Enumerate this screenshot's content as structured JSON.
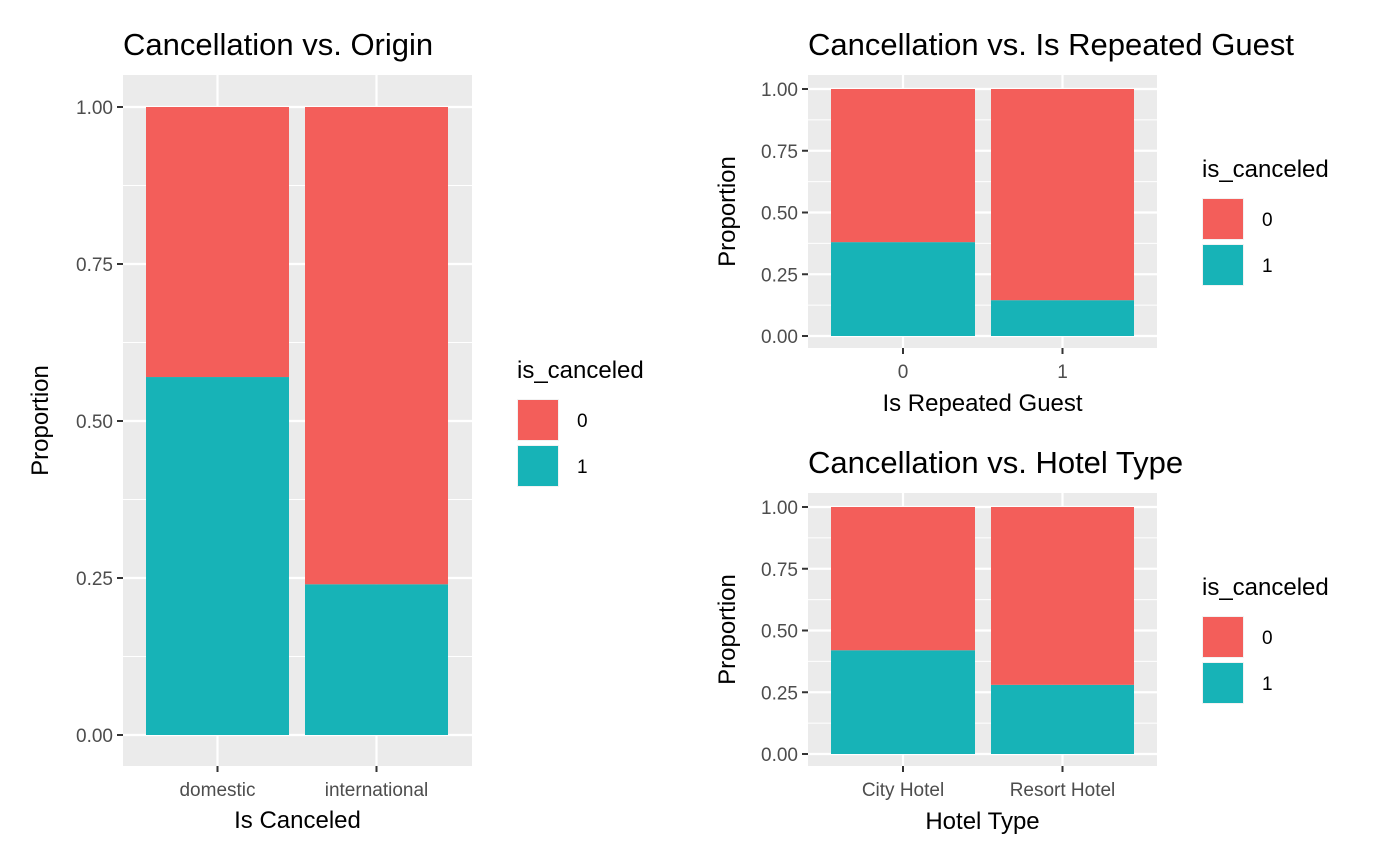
{
  "colors": {
    "canceled_0": "#F35E5A",
    "canceled_1": "#17B3B7",
    "panel": "#EBEBEB",
    "grid": "#FFFFFF"
  },
  "chart_data": [
    {
      "type": "bar",
      "stacked": true,
      "title": "Cancellation vs. Origin",
      "xlabel": "Is Canceled",
      "ylabel": "Proportion",
      "categories": [
        "domestic",
        "international"
      ],
      "series": [
        {
          "name": "0",
          "values": [
            0.43,
            0.76
          ]
        },
        {
          "name": "1",
          "values": [
            0.57,
            0.24
          ]
        }
      ],
      "ylim": [
        0,
        1
      ],
      "yticks": [
        "0.00",
        "0.25",
        "0.50",
        "0.75",
        "1.00"
      ],
      "legend": {
        "title": "is_canceled",
        "position": "right"
      },
      "grid": true
    },
    {
      "type": "bar",
      "stacked": true,
      "title": "Cancellation vs. Is Repeated Guest",
      "xlabel": "Is Repeated Guest",
      "ylabel": "Proportion",
      "categories": [
        "0",
        "1"
      ],
      "series": [
        {
          "name": "0",
          "values": [
            0.62,
            0.855
          ]
        },
        {
          "name": "1",
          "values": [
            0.38,
            0.145
          ]
        }
      ],
      "ylim": [
        0,
        1
      ],
      "yticks": [
        "0.00",
        "0.25",
        "0.50",
        "0.75",
        "1.00"
      ],
      "legend": {
        "title": "is_canceled",
        "position": "right"
      },
      "grid": true
    },
    {
      "type": "bar",
      "stacked": true,
      "title": "Cancellation vs. Hotel Type",
      "xlabel": "Hotel Type",
      "ylabel": "Proportion",
      "categories": [
        "City Hotel",
        "Resort Hotel"
      ],
      "series": [
        {
          "name": "0",
          "values": [
            0.58,
            0.72
          ]
        },
        {
          "name": "1",
          "values": [
            0.42,
            0.28
          ]
        }
      ],
      "ylim": [
        0,
        1
      ],
      "yticks": [
        "0.00",
        "0.25",
        "0.50",
        "0.75",
        "1.00"
      ],
      "legend": {
        "title": "is_canceled",
        "position": "right"
      },
      "grid": true
    }
  ]
}
